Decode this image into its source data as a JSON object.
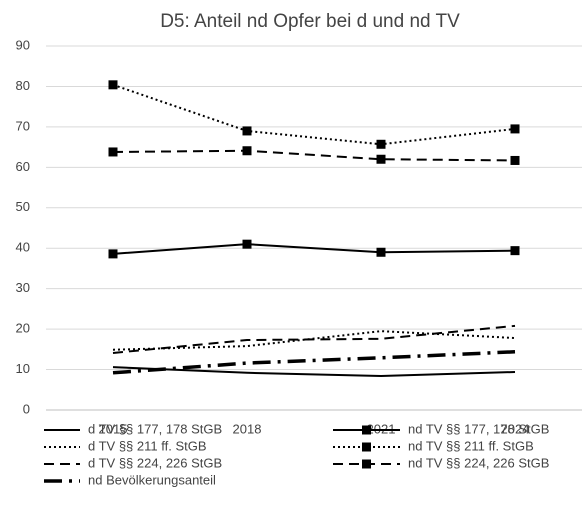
{
  "chart_data": {
    "type": "line",
    "title": "D5: Anteil nd Opfer bei d und nd TV",
    "categories": [
      "2015",
      "2018",
      "2021",
      "2024"
    ],
    "ylim": [
      0,
      90
    ],
    "yticks": [
      0,
      10,
      20,
      30,
      40,
      50,
      60,
      70,
      80,
      90
    ],
    "grid": true,
    "series": [
      {
        "name": "d TV §§ 177, 178 StGB",
        "color": "#000000",
        "line_style": "solid",
        "values": [
          10.6,
          9.2,
          8.4,
          9.4
        ]
      },
      {
        "name": "nd TV §§ 177, 178 StGB",
        "color": "#000000",
        "line_style": "solid",
        "marker": "square",
        "values": [
          38.6,
          41.0,
          39.0,
          39.4
        ]
      },
      {
        "name": "d TV §§ 211 ff. StGB",
        "color": "#000000",
        "line_style": "dotted",
        "values": [
          14.9,
          15.8,
          19.5,
          17.8
        ]
      },
      {
        "name": "nd TV §§ 211 ff. StGB",
        "color": "#000000",
        "line_style": "dotted",
        "marker": "square",
        "values": [
          80.4,
          69.0,
          65.7,
          69.5
        ]
      },
      {
        "name": "d TV §§ 224, 226 StGB",
        "color": "#000000",
        "line_style": "dashed",
        "values": [
          14.1,
          17.3,
          17.6,
          20.8
        ]
      },
      {
        "name": "nd TV §§ 224, 226 StGB",
        "color": "#000000",
        "line_style": "dashed",
        "marker": "square",
        "values": [
          63.8,
          64.1,
          62.0,
          61.7
        ]
      },
      {
        "name": "nd Bevölkerungsanteil",
        "color": "#000000",
        "line_style": "dashdot",
        "values": [
          9.2,
          11.6,
          12.9,
          14.4
        ]
      }
    ]
  }
}
